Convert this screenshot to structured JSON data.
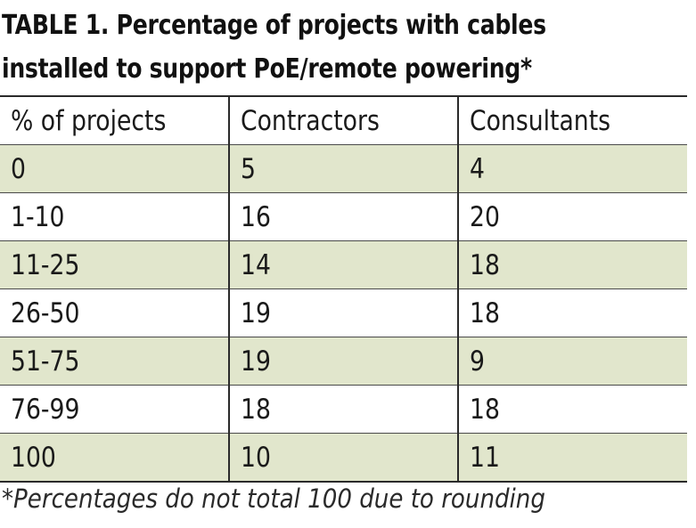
{
  "title": {
    "line1": "TABLE 1. Percentage of projects with cables",
    "line2": "installed to support PoE/remote powering*"
  },
  "table": {
    "headers": [
      "% of projects",
      "Contractors",
      "Consultants"
    ],
    "rows": [
      [
        "0",
        "5",
        "4"
      ],
      [
        "1-10",
        "16",
        "20"
      ],
      [
        "11-25",
        "14",
        "18"
      ],
      [
        "26-50",
        "19",
        "18"
      ],
      [
        "51-75",
        "19",
        "9"
      ],
      [
        "76-99",
        "18",
        "18"
      ],
      [
        "100",
        "10",
        "11"
      ]
    ]
  },
  "footnote": "*Percentages do not total 100 due to rounding",
  "colors": {
    "row_shade": "#e1e6cc",
    "rule": "#2a2a2a"
  }
}
